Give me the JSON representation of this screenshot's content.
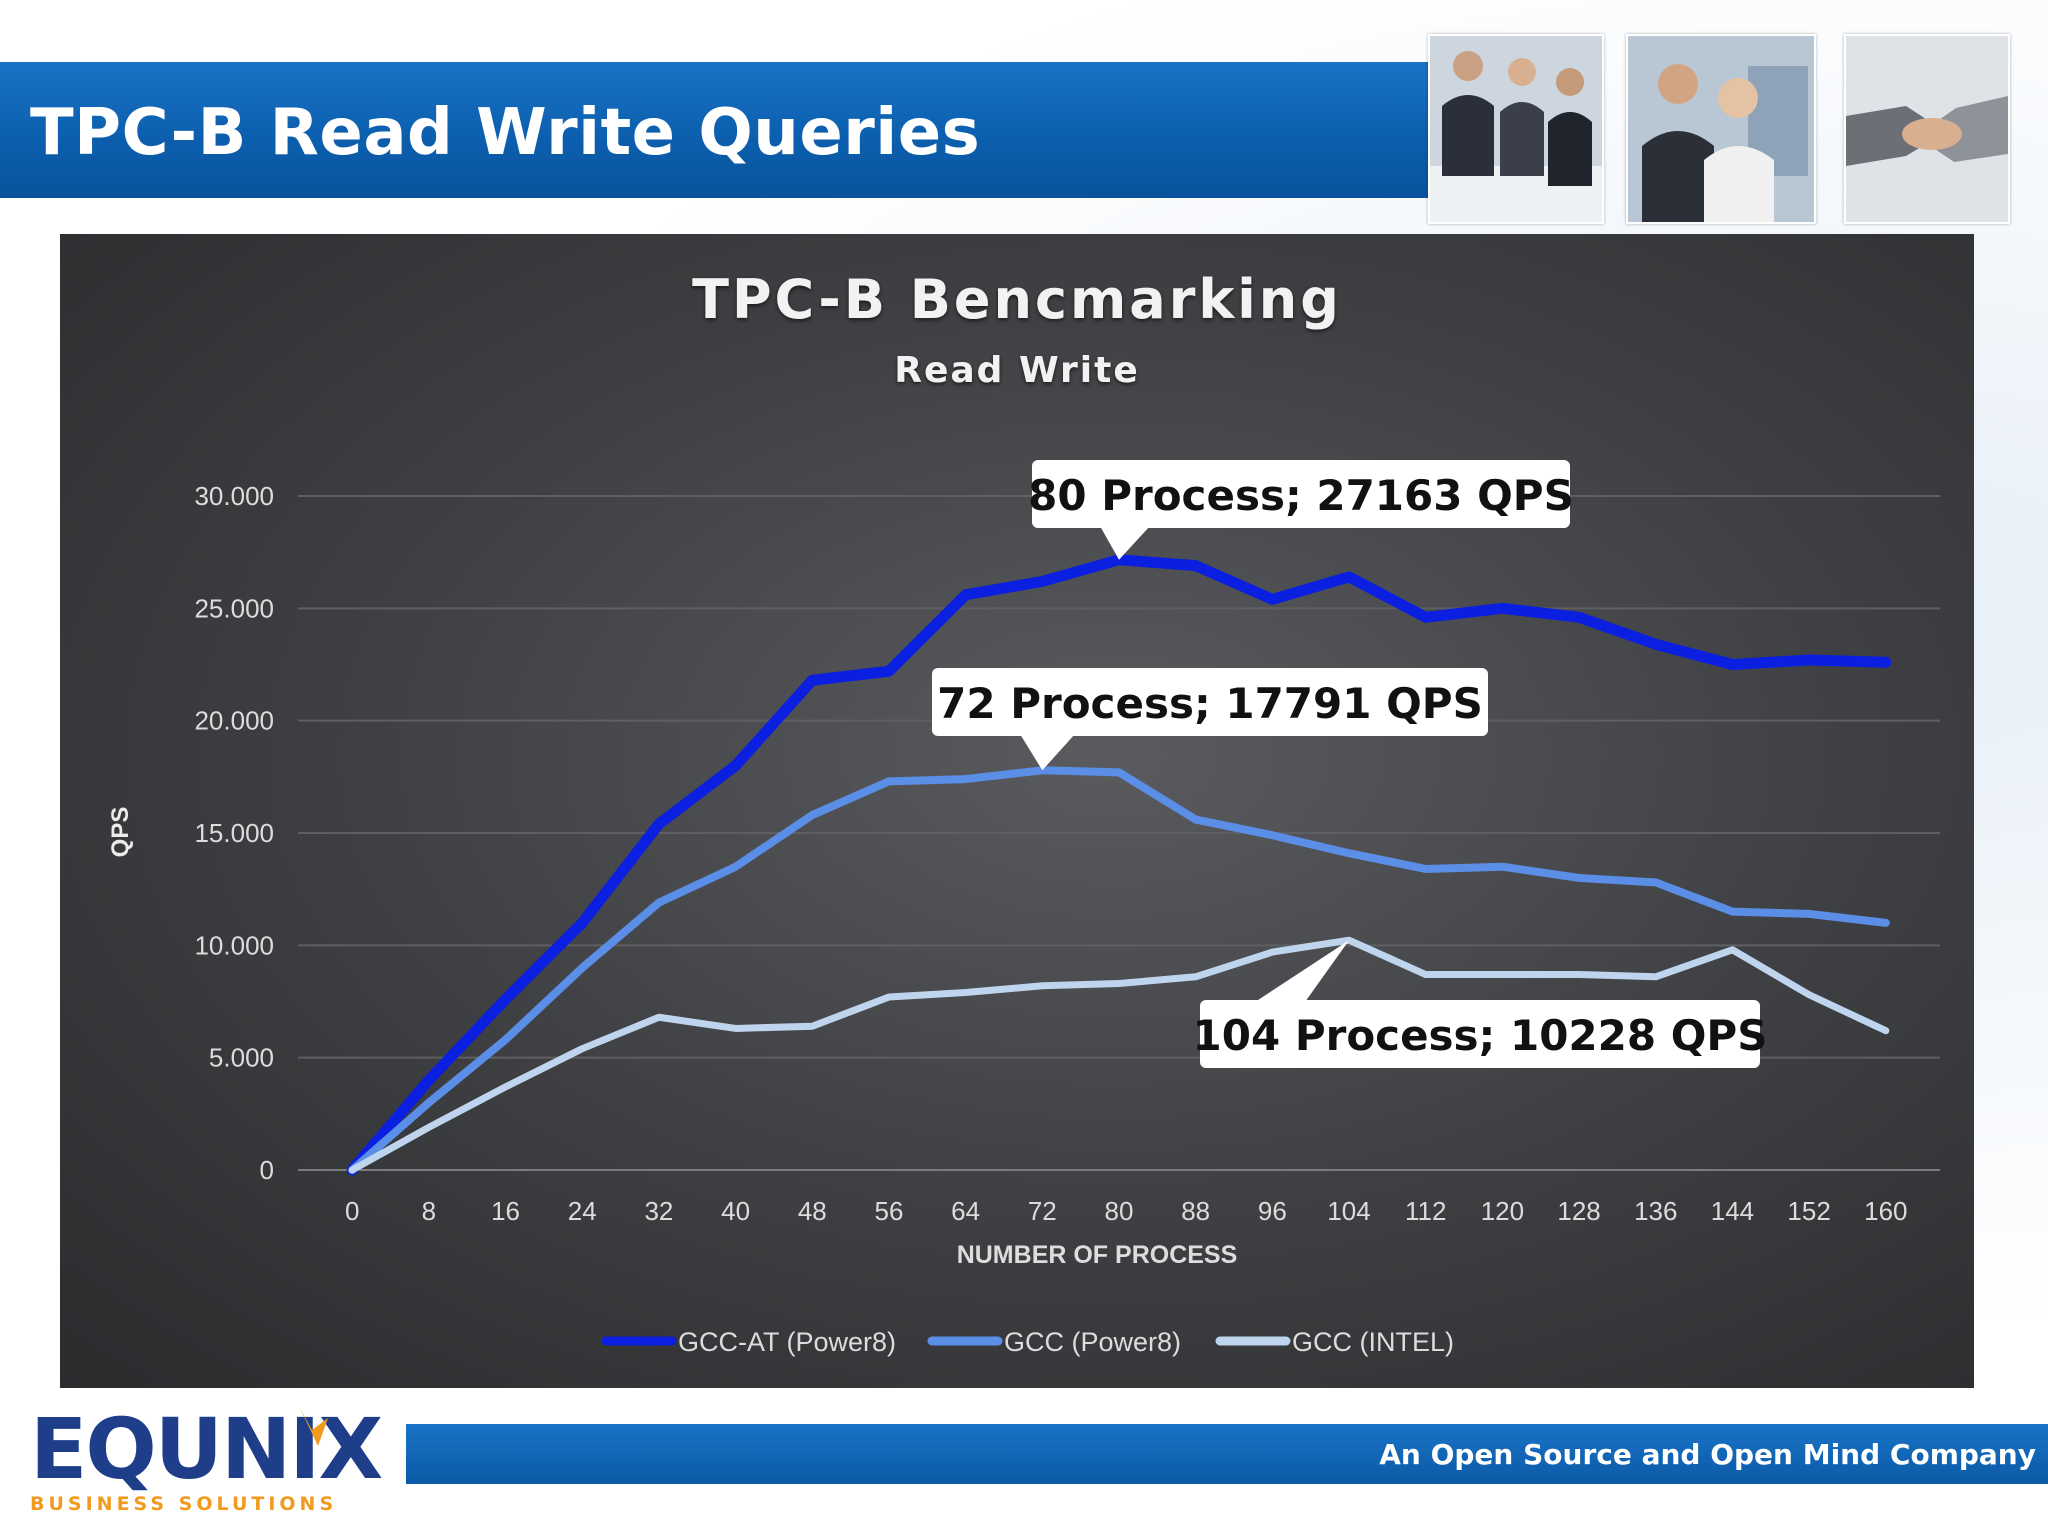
{
  "slide": {
    "title": "TPC-B Read Write Queries",
    "tagline": "An Open Source and Open Mind Company"
  },
  "logo": {
    "name": "EQUNIX",
    "sub": "BUSINESS SOLUTIONS"
  },
  "colors": {
    "header_blue": "#0c5fae",
    "series_1": "#0a1fe0",
    "series_2": "#5b8ee6",
    "series_3": "#bfd5ee"
  },
  "chart_data": {
    "type": "line",
    "title": "TPC-B Bencmarking",
    "subtitle": "Read Write",
    "xlabel": "NUMBER OF PROCESS",
    "ylabel": "QPS",
    "x": [
      0,
      8,
      16,
      24,
      32,
      40,
      48,
      56,
      64,
      72,
      80,
      88,
      96,
      104,
      112,
      120,
      128,
      136,
      144,
      152,
      160
    ],
    "yticks": [
      "0",
      "5.000",
      "10.000",
      "15.000",
      "20.000",
      "25.000",
      "30.000"
    ],
    "ylim": [
      0,
      30000
    ],
    "grid": true,
    "legend_position": "bottom",
    "series": [
      {
        "name": "GCC-AT (Power8)",
        "values": [
          0,
          4000,
          7600,
          11000,
          15400,
          18000,
          21800,
          22200,
          25600,
          26200,
          27163,
          26900,
          25400,
          26400,
          24600,
          25000,
          24600,
          23400,
          22500,
          22700,
          22600
        ]
      },
      {
        "name": "GCC (Power8)",
        "values": [
          0,
          3000,
          5800,
          9000,
          11900,
          13500,
          15800,
          17300,
          17400,
          17791,
          17700,
          15600,
          14900,
          14100,
          13400,
          13500,
          13000,
          12800,
          11500,
          11400,
          11000
        ]
      },
      {
        "name": "GCC (INTEL)",
        "values": [
          0,
          1900,
          3700,
          5400,
          6800,
          6300,
          6400,
          7700,
          7900,
          8200,
          8300,
          8600,
          9700,
          10228,
          8700,
          8700,
          8700,
          8600,
          9800,
          7800,
          6200
        ]
      }
    ],
    "annotations": [
      {
        "text": "80 Process; 27163 QPS",
        "series": 0,
        "x": 80,
        "y": 27163
      },
      {
        "text": "72 Process; 17791 QPS",
        "series": 1,
        "x": 72,
        "y": 17791
      },
      {
        "text": "104 Process; 10228 QPS",
        "series": 2,
        "x": 104,
        "y": 10228
      }
    ]
  }
}
